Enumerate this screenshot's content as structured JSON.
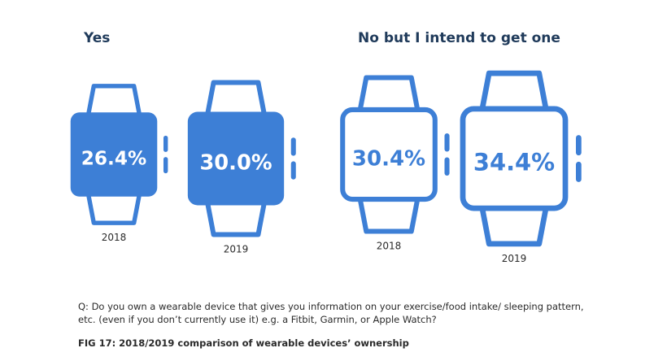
{
  "colors": {
    "accent": "#3d7fd6",
    "fill_text": "#ffffff",
    "label": "#2a2a2a",
    "title": "#1f3a5a"
  },
  "groups": [
    {
      "title": "Yes"
    },
    {
      "title": "No but I intend to get one"
    }
  ],
  "chart_data": {
    "type": "pictogram",
    "icon": "smartwatch-icon",
    "unit": "%",
    "categories": [
      "2018",
      "2019"
    ],
    "series": [
      {
        "name": "Yes",
        "values": [
          26.4,
          30.0
        ],
        "labels": [
          "26.4%",
          "30.0%"
        ],
        "style": "filled"
      },
      {
        "name": "No but I intend to get one",
        "values": [
          30.4,
          34.4
        ],
        "labels": [
          "30.4%",
          "34.4%"
        ],
        "style": "outline"
      }
    ]
  },
  "question": "Q: Do you own a wearable device that gives you information on your exercise/food intake/ sleeping pattern, etc. (even if you don’t currently use it) e.g. a Fitbit, Garmin, or Apple Watch?",
  "caption": "FIG 17: 2018/2019 comparison of wearable devices’ ownership"
}
